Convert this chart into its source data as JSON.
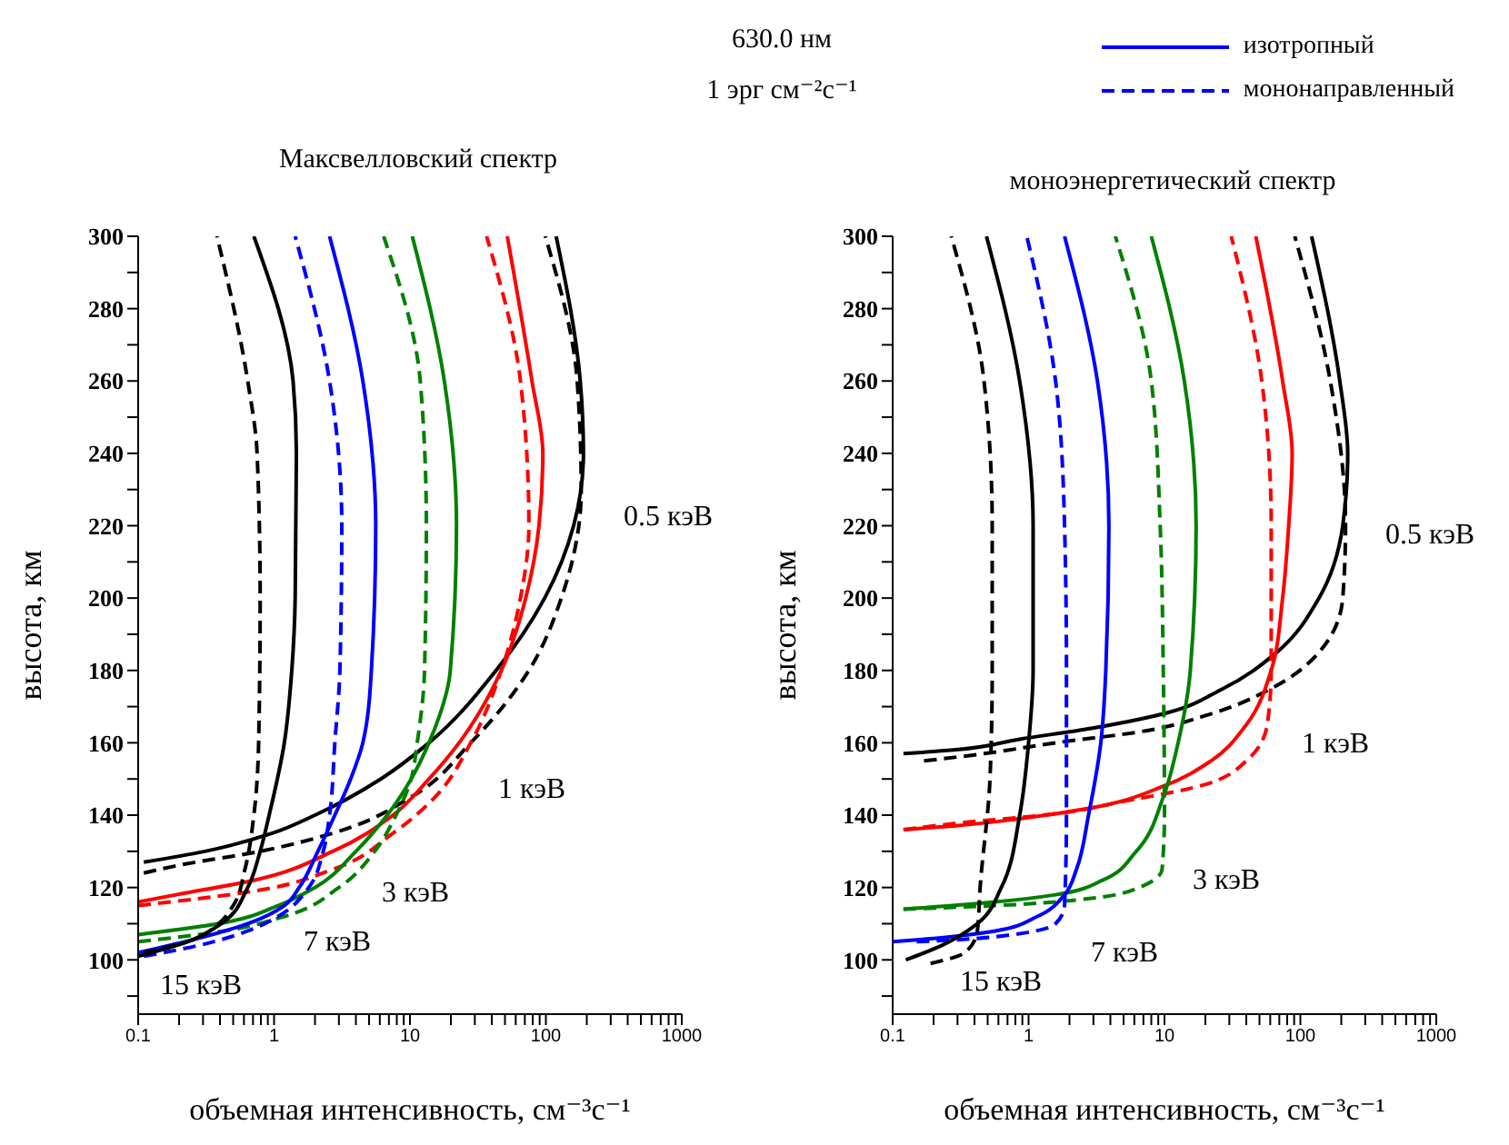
{
  "chart_data": [
    {
      "type": "line",
      "title": "Максвелловский спектр",
      "annotations": [
        "630.0 нм",
        "1 эрг см⁻²с⁻¹",
        "0.5 кэВ",
        "1 кэВ",
        "3 кэВ",
        "7 кэВ",
        "15 кэВ"
      ],
      "xlabel": "объемная интенсивность, см⁻³с⁻¹",
      "ylabel": "высота, км",
      "log": "x",
      "xlim": [
        0.1,
        1000
      ],
      "ylim": [
        85,
        300
      ],
      "xticks": [
        0.1,
        {
          "value": 0.2,
          "label": null
        },
        {
          "value": 0.3,
          "label": null
        },
        {
          "value": 0.4,
          "label": null
        },
        {
          "value": 0.5,
          "label": null
        },
        {
          "value": 0.6,
          "label": null
        },
        {
          "value": 0.7,
          "label": null
        },
        {
          "value": 0.8,
          "label": null
        },
        {
          "value": 0.9,
          "label": null
        },
        1,
        {
          "value": 2,
          "label": null
        },
        {
          "value": 3,
          "label": null
        },
        {
          "value": 4,
          "label": null
        },
        {
          "value": 5,
          "label": null
        },
        {
          "value": 6,
          "label": null
        },
        {
          "value": 7,
          "label": null
        },
        {
          "value": 8,
          "label": null
        },
        {
          "value": 9,
          "label": null
        },
        10,
        {
          "value": 20,
          "label": null
        },
        {
          "value": 30,
          "label": null
        },
        {
          "value": 40,
          "label": null
        },
        {
          "value": 50,
          "label": null
        },
        {
          "value": 60,
          "label": null
        },
        {
          "value": 70,
          "label": null
        },
        {
          "value": 80,
          "label": null
        },
        {
          "value": 90,
          "label": null
        },
        100,
        {
          "value": 200,
          "label": null
        },
        {
          "value": 300,
          "label": null
        },
        {
          "value": 400,
          "label": null
        },
        {
          "value": 500,
          "label": null
        },
        {
          "value": 600,
          "label": null
        },
        {
          "value": 700,
          "label": null
        },
        {
          "value": 800,
          "label": null
        },
        {
          "value": 900,
          "label": null
        },
        1000
      ],
      "yticks": [
        {
          "value": 90,
          "label": null
        },
        100,
        {
          "value": 110,
          "label": null
        },
        120,
        {
          "value": 130,
          "label": null
        },
        140,
        {
          "value": 150,
          "label": null
        },
        160,
        {
          "value": 170,
          "label": null
        },
        180,
        {
          "value": 190,
          "label": null
        },
        200,
        {
          "value": 210,
          "label": null
        },
        220,
        {
          "value": 230,
          "label": null
        },
        240,
        {
          "value": 250,
          "label": null
        },
        260,
        {
          "value": 270,
          "label": null
        },
        280,
        {
          "value": 290,
          "label": null
        },
        300
      ],
      "grid": false,
      "marker": "none",
      "series": [
        {
          "color": "#000000",
          "line_style": "solid",
          "x": [
            0.11,
            0.31,
            0.97,
            2.0,
            6.1,
            13.8,
            43,
            98,
            160,
            189,
            179,
            119
          ],
          "values": [
            127,
            130,
            135,
            140,
            150,
            160,
            180,
            200,
            220,
            240,
            260,
            300
          ]
        },
        {
          "color": "#000000",
          "line_style": "dashed",
          "x": [
            0.11,
            0.19,
            0.79,
            2.7,
            10.2,
            28,
            75,
            130,
            182,
            170,
            99
          ],
          "values": [
            124,
            126,
            130,
            135,
            145,
            160,
            180,
            200,
            230,
            260,
            300
          ]
        },
        {
          "color": "#ff0000",
          "line_style": "solid",
          "x": [
            0.1,
            0.19,
            0.71,
            2.7,
            7.5,
            13.8,
            23,
            47,
            71,
            89,
            95,
            79,
            52
          ],
          "values": [
            116,
            118,
            122,
            130,
            140,
            150,
            160,
            180,
            200,
            220,
            240,
            260,
            300
          ]
        },
        {
          "color": "#ff0000",
          "line_style": "dashed",
          "x": [
            0.1,
            0.71,
            2.7,
            7.5,
            15.3,
            28,
            47,
            65,
            75,
            65,
            36.6
          ],
          "values": [
            115,
            119,
            125,
            135,
            145,
            160,
            180,
            200,
            220,
            260,
            300
          ]
        },
        {
          "color": "#008000",
          "line_style": "solid",
          "x": [
            0.1,
            0.39,
            1.07,
            2.0,
            4.0,
            6.8,
            10.2,
            13.8,
            19.8,
            22,
            17.9,
            10.4
          ],
          "values": [
            107,
            110,
            115,
            120,
            130,
            140,
            150,
            160,
            180,
            220,
            260,
            300
          ]
        },
        {
          "color": "#008000",
          "line_style": "dashed",
          "x": [
            0.1,
            0.43,
            1.19,
            3.0,
            5.5,
            7.9,
            10.2,
            11.3,
            12.8,
            13.2,
            11.9,
            6.4
          ],
          "values": [
            105,
            108,
            112,
            120,
            130,
            140,
            150,
            160,
            180,
            220,
            260,
            300
          ]
        },
        {
          "color": "#0000ff",
          "line_style": "solid",
          "x": [
            0.1,
            0.28,
            0.64,
            1.19,
            1.53,
            2.1,
            2.8,
            3.66,
            4.5,
            5.2,
            5.6,
            4.5,
            2.56
          ],
          "values": [
            102,
            106,
            110,
            115,
            120,
            130,
            140,
            150,
            160,
            180,
            220,
            260,
            300
          ]
        },
        {
          "color": "#0000ff",
          "line_style": "dashed",
          "x": [
            0.11,
            0.28,
            0.64,
            1.07,
            1.8,
            2.3,
            2.56,
            2.8,
            3.05,
            3.15,
            2.56,
            1.43
          ],
          "values": [
            101,
            104,
            108,
            112,
            120,
            130,
            140,
            160,
            180,
            220,
            260,
            300
          ]
        },
        {
          "color": "#000000",
          "line_style": "solid",
          "x": [
            0.1,
            0.23,
            0.41,
            0.64,
            0.79,
            0.92,
            1.19,
            1.35,
            1.43,
            1.46,
            1.38,
            0.71
          ],
          "values": [
            101,
            105,
            110,
            120,
            130,
            140,
            160,
            180,
            200,
            240,
            260,
            300
          ]
        },
        {
          "color": "#000000",
          "line_style": "dashed",
          "x": [
            0.11,
            0.23,
            0.39,
            0.5,
            0.61,
            0.71,
            0.77,
            0.79,
            0.75,
            0.64,
            0.38
          ],
          "values": [
            102,
            105,
            110,
            115,
            125,
            140,
            160,
            200,
            240,
            260,
            300
          ]
        }
      ]
    },
    {
      "type": "line",
      "title": "моноэнергетический спектр",
      "annotations": [
        "0.5 кэВ",
        "1 кэВ",
        "3 кэВ",
        "7 кэВ",
        "15 кэВ"
      ],
      "xlabel": "объемная интенсивность, см⁻³с⁻¹",
      "ylabel": "высота, км",
      "log": "x",
      "xlim": [
        0.1,
        1000
      ],
      "ylim": [
        85,
        300
      ],
      "xticks": [
        0.1,
        {
          "value": 0.2,
          "label": null
        },
        {
          "value": 0.3,
          "label": null
        },
        {
          "value": 0.4,
          "label": null
        },
        {
          "value": 0.5,
          "label": null
        },
        {
          "value": 0.6,
          "label": null
        },
        {
          "value": 0.7,
          "label": null
        },
        {
          "value": 0.8,
          "label": null
        },
        {
          "value": 0.9,
          "label": null
        },
        1,
        {
          "value": 2,
          "label": null
        },
        {
          "value": 3,
          "label": null
        },
        {
          "value": 4,
          "label": null
        },
        {
          "value": 5,
          "label": null
        },
        {
          "value": 6,
          "label": null
        },
        {
          "value": 7,
          "label": null
        },
        {
          "value": 8,
          "label": null
        },
        {
          "value": 9,
          "label": null
        },
        10,
        {
          "value": 20,
          "label": null
        },
        {
          "value": 30,
          "label": null
        },
        {
          "value": 40,
          "label": null
        },
        {
          "value": 50,
          "label": null
        },
        {
          "value": 60,
          "label": null
        },
        {
          "value": 70,
          "label": null
        },
        {
          "value": 80,
          "label": null
        },
        {
          "value": 90,
          "label": null
        },
        100,
        {
          "value": 200,
          "label": null
        },
        {
          "value": 300,
          "label": null
        },
        {
          "value": 400,
          "label": null
        },
        {
          "value": 500,
          "label": null
        },
        {
          "value": 600,
          "label": null
        },
        {
          "value": 700,
          "label": null
        },
        {
          "value": 800,
          "label": null
        },
        {
          "value": 900,
          "label": null
        },
        1000
      ],
      "yticks": [
        {
          "value": 90,
          "label": null
        },
        100,
        {
          "value": 110,
          "label": null
        },
        120,
        {
          "value": 130,
          "label": null
        },
        140,
        {
          "value": 150,
          "label": null
        },
        160,
        {
          "value": 170,
          "label": null
        },
        180,
        {
          "value": 190,
          "label": null
        },
        200,
        {
          "value": 210,
          "label": null
        },
        220,
        {
          "value": 230,
          "label": null
        },
        240,
        {
          "value": 250,
          "label": null
        },
        260,
        {
          "value": 270,
          "label": null
        },
        280,
        {
          "value": 290,
          "label": null
        },
        300
      ],
      "grid": false,
      "marker": "none",
      "legend": "top right",
      "series": [
        {
          "color": "#000000",
          "line_style": "solid",
          "x": [
            0.12,
            0.28,
            0.86,
            2.9,
            9.8,
            27,
            67,
            137,
            205,
            223,
            195,
            121
          ],
          "values": [
            157,
            158,
            161,
            164,
            168,
            175,
            185,
            200,
            220,
            240,
            260,
            300
          ]
        },
        {
          "color": "#000000",
          "line_style": "dashed",
          "x": [
            0.17,
            0.47,
            1.58,
            6.5,
            22,
            61,
            137,
            205,
            215,
            166,
            91
          ],
          "values": [
            155,
            157,
            160,
            163,
            168,
            175,
            185,
            200,
            220,
            260,
            300
          ]
        },
        {
          "color": "#ff0000",
          "line_style": "solid",
          "x": [
            0.12,
            0.28,
            0.86,
            2.9,
            9.8,
            22,
            40,
            61,
            74,
            82,
            87,
            74,
            47
          ],
          "values": [
            136,
            137,
            139,
            142,
            148,
            155,
            165,
            180,
            200,
            220,
            240,
            260,
            300
          ]
        },
        {
          "color": "#ff0000",
          "line_style": "dashed",
          "x": [
            0.12,
            0.34,
            1.29,
            5.3,
            18,
            40,
            57,
            61,
            61,
            52,
            31
          ],
          "values": [
            136,
            138,
            140,
            144,
            148,
            155,
            165,
            180,
            220,
            260,
            300
          ]
        },
        {
          "color": "#008000",
          "line_style": "solid",
          "x": [
            0.12,
            0.57,
            1.58,
            3.5,
            6.2,
            9.8,
            12.6,
            15.5,
            17.1,
            14,
            8.0
          ],
          "values": [
            114,
            116,
            118,
            122,
            130,
            145,
            160,
            180,
            220,
            260,
            300
          ]
        },
        {
          "color": "#008000",
          "line_style": "dashed",
          "x": [
            0.12,
            0.57,
            2.9,
            6.5,
            9.6,
            10,
            9.8,
            9.3,
            8.0,
            4.35
          ],
          "values": [
            114,
            115,
            117,
            120,
            125,
            140,
            180,
            220,
            260,
            300
          ]
        },
        {
          "name": "изотропный",
          "color": "#0000ff",
          "line_style": "solid",
          "x": [
            0.1,
            0.21,
            0.57,
            1.16,
            1.84,
            2.25,
            2.76,
            3.4,
            3.7,
            3.9,
            3.21,
            1.84
          ],
          "values": [
            105,
            106,
            108,
            112,
            118,
            125,
            140,
            160,
            180,
            220,
            260,
            300
          ]
        },
        {
          "name": "мононаправленный",
          "color": "#0000ff",
          "line_style": "dashed",
          "x": [
            0.15,
            0.28,
            0.77,
            1.58,
            1.84,
            1.9,
            1.9,
            1.84,
            1.58,
            0.97
          ],
          "values": [
            105,
            105.5,
            107,
            110,
            115,
            140,
            180,
            220,
            260,
            300
          ]
        },
        {
          "color": "#000000",
          "line_style": "solid",
          "x": [
            0.125,
            0.23,
            0.42,
            0.63,
            0.86,
            1.0,
            1.08,
            1.08,
            0.86,
            0.49
          ],
          "values": [
            100,
            104,
            110,
            120,
            140,
            160,
            180,
            220,
            260,
            300
          ]
        },
        {
          "color": "#000000",
          "line_style": "dashed",
          "x": [
            0.19,
            0.34,
            0.42,
            0.44,
            0.52,
            0.54,
            0.54,
            0.47,
            0.27
          ],
          "values": [
            99,
            102,
            108,
            120,
            150,
            180,
            220,
            260,
            300
          ]
        }
      ]
    }
  ]
}
